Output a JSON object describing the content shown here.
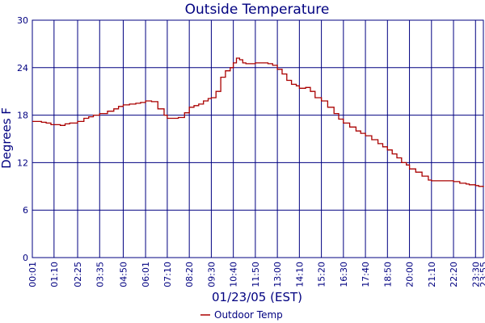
{
  "chart_data": {
    "type": "line",
    "title": "Outside Temperature",
    "xlabel": "01/23/05 (EST)",
    "ylabel": "Degrees F",
    "ylim": [
      0,
      30
    ],
    "yticks": [
      "0",
      "6",
      "12",
      "18",
      "24",
      "30"
    ],
    "xticks": [
      "00:01",
      "01:10",
      "02:25",
      "03:35",
      "04:50",
      "06:01",
      "07:10",
      "08:20",
      "09:30",
      "10:40",
      "11:50",
      "13:00",
      "14:10",
      "15:20",
      "16:30",
      "17:40",
      "18:50",
      "20:00",
      "21:10",
      "22:20",
      "23:30",
      "23:55"
    ],
    "grid": true,
    "legend_position": "bottom-center",
    "colors": {
      "grid": "#000080",
      "series": "#aa0000",
      "text": "#000080"
    },
    "series": [
      {
        "name": "Outdoor Temp",
        "x": [
          "00:01",
          "00:30",
          "00:45",
          "01:00",
          "01:10",
          "01:30",
          "01:45",
          "02:00",
          "02:25",
          "02:45",
          "03:00",
          "03:15",
          "03:35",
          "04:00",
          "04:20",
          "04:35",
          "04:50",
          "05:10",
          "05:30",
          "05:45",
          "06:01",
          "06:20",
          "06:40",
          "07:00",
          "07:10",
          "07:30",
          "07:45",
          "08:05",
          "08:20",
          "08:35",
          "08:50",
          "09:05",
          "09:20",
          "09:30",
          "09:45",
          "10:00",
          "10:15",
          "10:30",
          "10:40",
          "10:50",
          "11:00",
          "11:10",
          "11:20",
          "11:30",
          "11:50",
          "12:10",
          "12:30",
          "12:45",
          "13:00",
          "13:15",
          "13:30",
          "13:45",
          "14:00",
          "14:10",
          "14:30",
          "14:45",
          "15:00",
          "15:20",
          "15:40",
          "16:00",
          "16:15",
          "16:30",
          "16:50",
          "17:10",
          "17:25",
          "17:40",
          "18:00",
          "18:20",
          "18:35",
          "18:50",
          "19:05",
          "19:20",
          "19:35",
          "19:50",
          "20:00",
          "20:20",
          "20:40",
          "21:00",
          "21:10",
          "21:30",
          "22:00",
          "22:20",
          "22:40",
          "23:00",
          "23:10",
          "23:30",
          "23:40",
          "23:55"
        ],
        "y": [
          17.2,
          17.1,
          17.0,
          16.8,
          16.8,
          16.7,
          16.9,
          17.0,
          17.2,
          17.6,
          17.8,
          18.0,
          18.2,
          18.5,
          18.8,
          19.1,
          19.3,
          19.4,
          19.5,
          19.6,
          19.8,
          19.7,
          18.8,
          18.0,
          17.6,
          17.6,
          17.7,
          18.3,
          19.0,
          19.2,
          19.4,
          19.8,
          20.1,
          20.2,
          21.0,
          22.8,
          23.6,
          24.0,
          24.6,
          25.2,
          25.0,
          24.6,
          24.5,
          24.5,
          24.6,
          24.6,
          24.5,
          24.3,
          23.8,
          23.2,
          22.4,
          21.9,
          21.7,
          21.4,
          21.5,
          21.0,
          20.2,
          19.8,
          19.0,
          18.2,
          17.5,
          17.0,
          16.5,
          16.0,
          15.7,
          15.4,
          14.9,
          14.4,
          14.0,
          13.6,
          13.1,
          12.6,
          12.0,
          11.7,
          11.2,
          10.8,
          10.3,
          9.8,
          9.7,
          9.7,
          9.7,
          9.6,
          9.4,
          9.3,
          9.2,
          9.1,
          9.0,
          8.9
        ]
      }
    ]
  }
}
